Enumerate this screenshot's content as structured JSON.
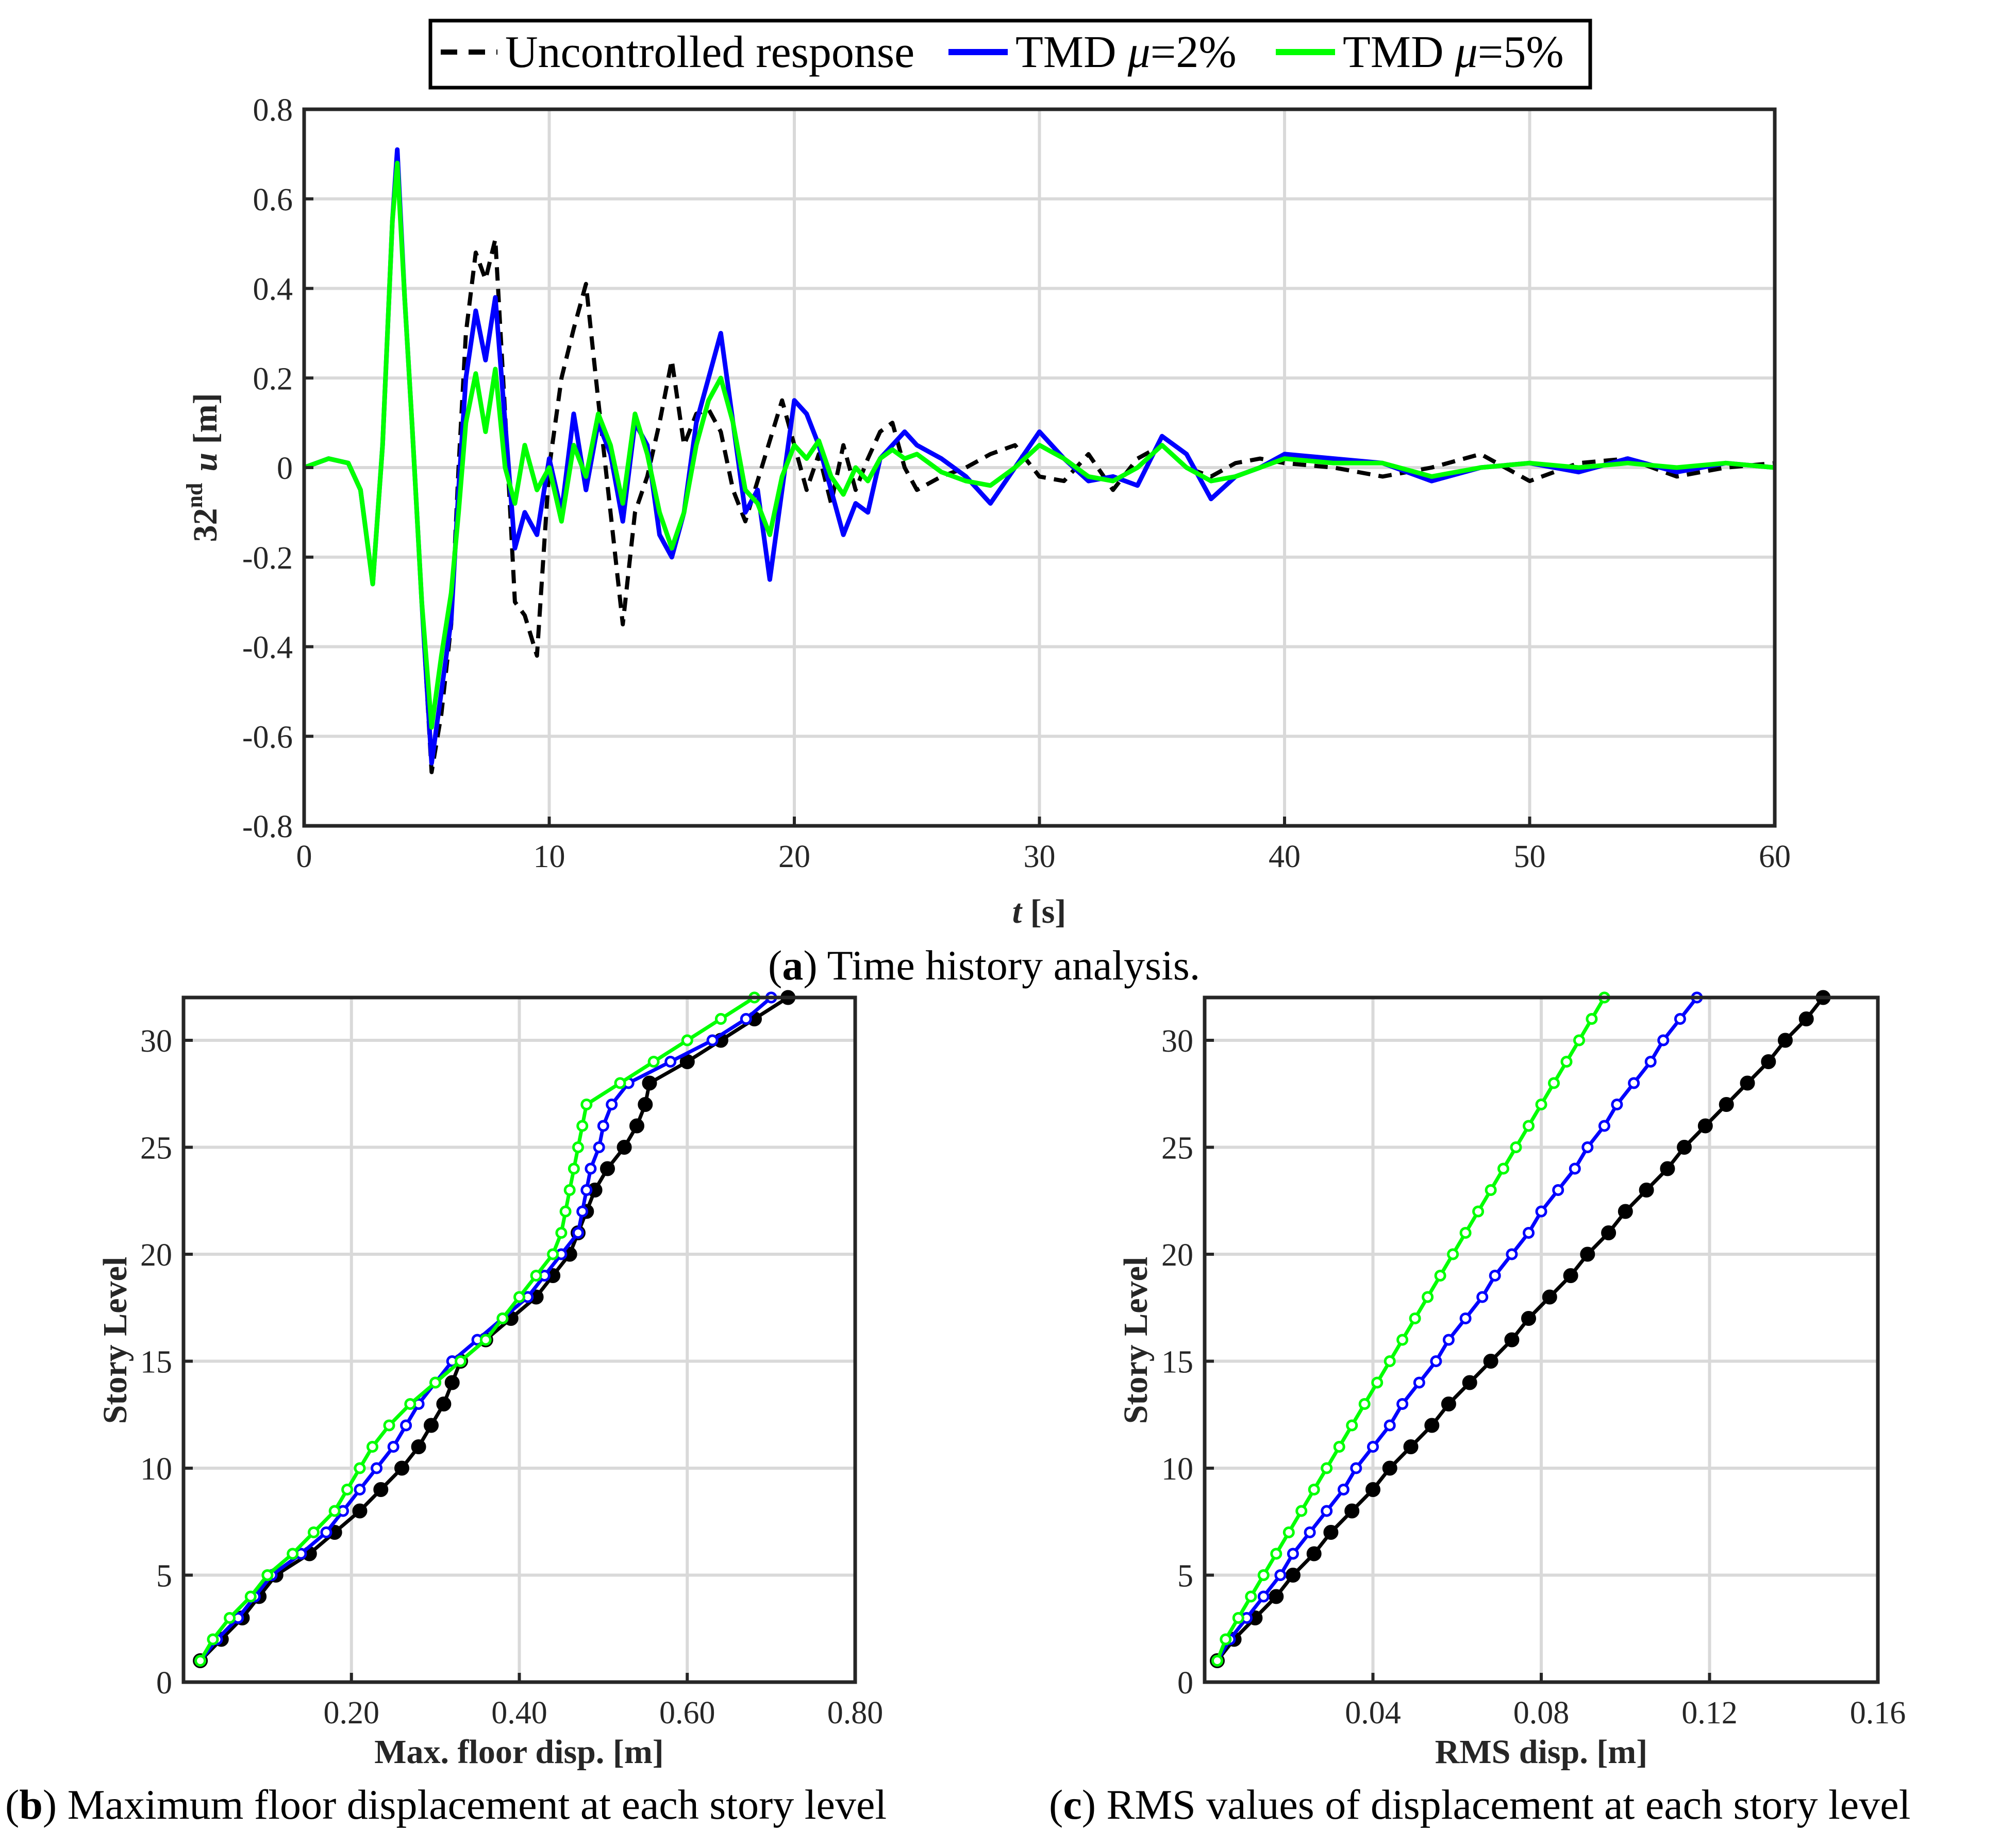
{
  "colors": {
    "uncontrolled": "#000000",
    "tmd2": "#0000ff",
    "tmd5": "#00ff00"
  },
  "legend": {
    "uncontrolled": "Uncontrolled response",
    "tmd2_prefix": "TMD ",
    "mu": "μ",
    "tmd2_suffix": "=2%",
    "tmd5_prefix": "TMD ",
    "tmd5_suffix": "=5%"
  },
  "captions": {
    "a_letter": "a",
    "a_text": ") Time history analysis.",
    "b_letter": "b",
    "b_text": ") Maximum floor displacement at each story level",
    "c_letter": "c",
    "c_text": ") RMS values of displacement at each story level"
  },
  "chart_data": [
    {
      "id": "a",
      "type": "line",
      "xlabel_var": "t",
      "xlabel_unit": " [s]",
      "ylabel_num": "32",
      "ylabel_sup": "nd",
      "ylabel_var": "u",
      "ylabel_unit": " [m]",
      "xlim": [
        0,
        60
      ],
      "ylim": [
        -0.8,
        0.8
      ],
      "xticks": [
        0,
        10,
        20,
        30,
        40,
        50,
        60
      ],
      "xtick_labels": [
        "0",
        "10",
        "20",
        "30",
        "40",
        "50",
        "60"
      ],
      "yticks": [
        -0.8,
        -0.6,
        -0.4,
        -0.2,
        0,
        0.2,
        0.4,
        0.6,
        0.8
      ],
      "ytick_labels": [
        "-0.8",
        "-0.6",
        "-0.4",
        "-0.2",
        "0",
        "0.2",
        "0.4",
        "0.6",
        "0.8"
      ],
      "grid": true,
      "series": [
        {
          "name": "Uncontrolled response",
          "style": "dashed",
          "x": [
            0,
            1,
            1.8,
            2.3,
            2.8,
            3.2,
            3.6,
            3.8,
            4.1,
            4.4,
            4.8,
            5.2,
            5.6,
            6.0,
            6.3,
            6.6,
            7.0,
            7.4,
            7.8,
            8.2,
            8.6,
            9.0,
            9.5,
            10.0,
            10.5,
            11.0,
            11.5,
            12.0,
            12.5,
            13.0,
            13.5,
            14.0,
            14.5,
            15.0,
            15.5,
            16.0,
            16.5,
            17.0,
            17.5,
            18.0,
            18.5,
            19.0,
            19.5,
            20.0,
            20.5,
            21.0,
            21.5,
            22.0,
            22.5,
            23.0,
            23.5,
            24.0,
            24.5,
            25.0,
            26.0,
            27.0,
            28.0,
            29.0,
            30.0,
            31.0,
            32.0,
            33.0,
            34.0,
            35.0,
            36.0,
            37.0,
            38.0,
            39.0,
            40.0,
            42.0,
            44.0,
            46.0,
            48.0,
            50.0,
            52.0,
            54.0,
            56.0,
            58.0,
            60.0
          ],
          "y": [
            0,
            0.02,
            0.01,
            -0.05,
            -0.26,
            0.05,
            0.55,
            0.7,
            0.38,
            0.1,
            -0.3,
            -0.68,
            -0.55,
            -0.35,
            0.0,
            0.3,
            0.48,
            0.42,
            0.51,
            0.12,
            -0.3,
            -0.33,
            -0.42,
            0.0,
            0.2,
            0.31,
            0.41,
            0.15,
            -0.1,
            -0.35,
            -0.1,
            -0.02,
            0.1,
            0.24,
            0.05,
            0.12,
            0.13,
            0.08,
            -0.05,
            -0.12,
            -0.03,
            0.06,
            0.15,
            0.05,
            -0.05,
            0.03,
            -0.08,
            0.05,
            -0.05,
            0.02,
            0.08,
            0.1,
            0.0,
            -0.05,
            -0.02,
            0.0,
            0.03,
            0.05,
            -0.02,
            -0.03,
            0.03,
            -0.05,
            0.02,
            0.05,
            0.0,
            -0.02,
            0.01,
            0.02,
            0.01,
            0.0,
            -0.02,
            0.0,
            0.03,
            -0.03,
            0.01,
            0.02,
            -0.02,
            0.0,
            0.01
          ]
        },
        {
          "name": "TMD μ=2%",
          "style": "solid",
          "x": [
            0,
            1,
            1.8,
            2.3,
            2.8,
            3.2,
            3.6,
            3.8,
            4.1,
            4.4,
            4.8,
            5.2,
            5.6,
            6.0,
            6.3,
            6.6,
            7.0,
            7.4,
            7.8,
            8.2,
            8.6,
            9.0,
            9.5,
            10.0,
            10.5,
            11.0,
            11.5,
            12.0,
            12.5,
            13.0,
            13.5,
            14.0,
            14.5,
            15.0,
            15.5,
            16.0,
            16.5,
            17.0,
            17.5,
            18.0,
            18.5,
            19.0,
            19.5,
            20.0,
            20.5,
            21.0,
            21.5,
            22.0,
            22.5,
            23.0,
            23.5,
            24.0,
            24.5,
            25.0,
            26.0,
            27.0,
            28.0,
            29.0,
            30.0,
            31.0,
            32.0,
            33.0,
            34.0,
            35.0,
            36.0,
            37.0,
            38.0,
            39.0,
            40.0,
            42.0,
            44.0,
            46.0,
            48.0,
            50.0,
            52.0,
            54.0,
            56.0,
            58.0,
            60.0
          ],
          "y": [
            0,
            0.02,
            0.01,
            -0.05,
            -0.26,
            0.05,
            0.55,
            0.71,
            0.38,
            0.1,
            -0.3,
            -0.66,
            -0.5,
            -0.34,
            -0.05,
            0.2,
            0.35,
            0.24,
            0.38,
            0.1,
            -0.18,
            -0.1,
            -0.15,
            0.02,
            -0.1,
            0.12,
            -0.05,
            0.1,
            0.03,
            -0.12,
            0.1,
            0.05,
            -0.15,
            -0.2,
            -0.1,
            0.1,
            0.2,
            0.3,
            0.1,
            -0.1,
            -0.05,
            -0.25,
            -0.05,
            0.15,
            0.12,
            0.05,
            -0.05,
            -0.15,
            -0.08,
            -0.1,
            0.02,
            0.05,
            0.08,
            0.05,
            0.02,
            -0.02,
            -0.08,
            0.0,
            0.08,
            0.02,
            -0.03,
            -0.02,
            -0.04,
            0.07,
            0.03,
            -0.07,
            -0.02,
            0.0,
            0.03,
            0.02,
            0.01,
            -0.03,
            0.0,
            0.01,
            -0.01,
            0.02,
            -0.01,
            0.01,
            0.0
          ]
        },
        {
          "name": "TMD μ=5%",
          "style": "solid",
          "x": [
            0,
            1,
            1.8,
            2.3,
            2.8,
            3.2,
            3.6,
            3.8,
            4.1,
            4.4,
            4.8,
            5.2,
            5.6,
            6.0,
            6.3,
            6.6,
            7.0,
            7.4,
            7.8,
            8.2,
            8.6,
            9.0,
            9.5,
            10.0,
            10.5,
            11.0,
            11.5,
            12.0,
            12.5,
            13.0,
            13.5,
            14.0,
            14.5,
            15.0,
            15.5,
            16.0,
            16.5,
            17.0,
            17.5,
            18.0,
            18.5,
            19.0,
            19.5,
            20.0,
            20.5,
            21.0,
            21.5,
            22.0,
            22.5,
            23.0,
            23.5,
            24.0,
            24.5,
            25.0,
            26.0,
            27.0,
            28.0,
            29.0,
            30.0,
            31.0,
            32.0,
            33.0,
            34.0,
            35.0,
            36.0,
            37.0,
            38.0,
            39.0,
            40.0,
            42.0,
            44.0,
            46.0,
            48.0,
            50.0,
            52.0,
            54.0,
            56.0,
            58.0,
            60.0
          ],
          "y": [
            0,
            0.02,
            0.01,
            -0.05,
            -0.26,
            0.05,
            0.55,
            0.68,
            0.38,
            0.1,
            -0.3,
            -0.58,
            -0.42,
            -0.28,
            -0.1,
            0.1,
            0.21,
            0.08,
            0.22,
            0.0,
            -0.08,
            0.05,
            -0.05,
            0.0,
            -0.12,
            0.05,
            -0.02,
            0.12,
            0.05,
            -0.08,
            0.12,
            0.03,
            -0.1,
            -0.18,
            -0.1,
            0.05,
            0.15,
            0.2,
            0.1,
            -0.05,
            -0.08,
            -0.15,
            -0.02,
            0.05,
            0.02,
            0.06,
            -0.02,
            -0.06,
            0.0,
            -0.03,
            0.02,
            0.04,
            0.02,
            0.03,
            -0.01,
            -0.03,
            -0.04,
            0.0,
            0.05,
            0.02,
            -0.02,
            -0.03,
            0.0,
            0.05,
            0.0,
            -0.03,
            -0.02,
            0.0,
            0.02,
            0.01,
            0.01,
            -0.02,
            0.0,
            0.01,
            0.0,
            0.01,
            0.0,
            0.01,
            0.0
          ]
        }
      ]
    },
    {
      "id": "b",
      "type": "line",
      "xlabel": "Max. floor disp. [m]",
      "ylabel": "Story Level",
      "xlim": [
        0.0,
        0.8
      ],
      "ylim": [
        0,
        32
      ],
      "xticks": [
        0.2,
        0.4,
        0.6,
        0.8
      ],
      "xtick_labels": [
        "0.20",
        "0.40",
        "0.60",
        "0.80"
      ],
      "yticks": [
        0,
        5,
        10,
        15,
        20,
        25,
        30
      ],
      "ytick_labels": [
        "0",
        "5",
        "10",
        "15",
        "20",
        "25",
        "30"
      ],
      "grid": true,
      "story_levels": [
        1,
        2,
        3,
        4,
        5,
        6,
        7,
        8,
        9,
        10,
        11,
        12,
        13,
        14,
        15,
        16,
        17,
        18,
        19,
        20,
        21,
        22,
        23,
        24,
        25,
        26,
        27,
        28,
        29,
        30,
        31,
        32
      ],
      "series": [
        {
          "name": "Uncontrolled response",
          "marker": "filled",
          "x": [
            0.02,
            0.045,
            0.07,
            0.09,
            0.11,
            0.15,
            0.18,
            0.21,
            0.235,
            0.26,
            0.28,
            0.295,
            0.31,
            0.32,
            0.33,
            0.36,
            0.39,
            0.42,
            0.44,
            0.46,
            0.47,
            0.48,
            0.49,
            0.505,
            0.525,
            0.54,
            0.55,
            0.555,
            0.6,
            0.64,
            0.68,
            0.72
          ]
        },
        {
          "name": "TMD μ=2%",
          "marker": "open",
          "x": [
            0.02,
            0.04,
            0.065,
            0.085,
            0.105,
            0.14,
            0.17,
            0.19,
            0.21,
            0.23,
            0.25,
            0.265,
            0.28,
            0.3,
            0.32,
            0.35,
            0.38,
            0.41,
            0.43,
            0.45,
            0.47,
            0.475,
            0.48,
            0.485,
            0.495,
            0.5,
            0.51,
            0.53,
            0.58,
            0.63,
            0.67,
            0.7
          ]
        },
        {
          "name": "TMD μ=5%",
          "marker": "open",
          "x": [
            0.02,
            0.035,
            0.055,
            0.08,
            0.1,
            0.13,
            0.155,
            0.18,
            0.195,
            0.21,
            0.225,
            0.245,
            0.27,
            0.3,
            0.33,
            0.36,
            0.38,
            0.4,
            0.42,
            0.44,
            0.45,
            0.455,
            0.46,
            0.465,
            0.47,
            0.475,
            0.48,
            0.52,
            0.56,
            0.6,
            0.64,
            0.68
          ]
        }
      ]
    },
    {
      "id": "c",
      "type": "line",
      "xlabel": "RMS disp. [m]",
      "ylabel": "Story Level",
      "xlim": [
        0.0,
        0.16
      ],
      "ylim": [
        0,
        32
      ],
      "xticks": [
        0.04,
        0.08,
        0.12,
        0.16
      ],
      "xtick_labels": [
        "0.04",
        "0.08",
        "0.12",
        "0.16"
      ],
      "yticks": [
        0,
        5,
        10,
        15,
        20,
        25,
        30
      ],
      "ytick_labels": [
        "0",
        "5",
        "10",
        "15",
        "20",
        "25",
        "30"
      ],
      "grid": true,
      "story_levels": [
        1,
        2,
        3,
        4,
        5,
        6,
        7,
        8,
        9,
        10,
        11,
        12,
        13,
        14,
        15,
        16,
        17,
        18,
        19,
        20,
        21,
        22,
        23,
        24,
        25,
        26,
        27,
        28,
        29,
        30,
        31,
        32
      ],
      "series": [
        {
          "name": "Uncontrolled response",
          "marker": "filled",
          "x": [
            0.003,
            0.007,
            0.012,
            0.017,
            0.021,
            0.026,
            0.03,
            0.035,
            0.04,
            0.044,
            0.049,
            0.054,
            0.058,
            0.063,
            0.068,
            0.073,
            0.077,
            0.082,
            0.087,
            0.091,
            0.096,
            0.1,
            0.105,
            0.11,
            0.114,
            0.119,
            0.124,
            0.129,
            0.134,
            0.138,
            0.143,
            0.147
          ]
        },
        {
          "name": "TMD μ=2%",
          "marker": "open",
          "x": [
            0.003,
            0.006,
            0.01,
            0.014,
            0.018,
            0.021,
            0.025,
            0.029,
            0.033,
            0.036,
            0.04,
            0.044,
            0.047,
            0.051,
            0.055,
            0.058,
            0.062,
            0.066,
            0.069,
            0.073,
            0.077,
            0.08,
            0.084,
            0.088,
            0.091,
            0.095,
            0.098,
            0.102,
            0.106,
            0.109,
            0.113,
            0.117
          ]
        },
        {
          "name": "TMD μ=5%",
          "marker": "open",
          "x": [
            0.003,
            0.005,
            0.008,
            0.011,
            0.014,
            0.017,
            0.02,
            0.023,
            0.026,
            0.029,
            0.032,
            0.035,
            0.038,
            0.041,
            0.044,
            0.047,
            0.05,
            0.053,
            0.056,
            0.059,
            0.062,
            0.065,
            0.068,
            0.071,
            0.074,
            0.077,
            0.08,
            0.083,
            0.086,
            0.089,
            0.092,
            0.095
          ]
        }
      ]
    }
  ]
}
